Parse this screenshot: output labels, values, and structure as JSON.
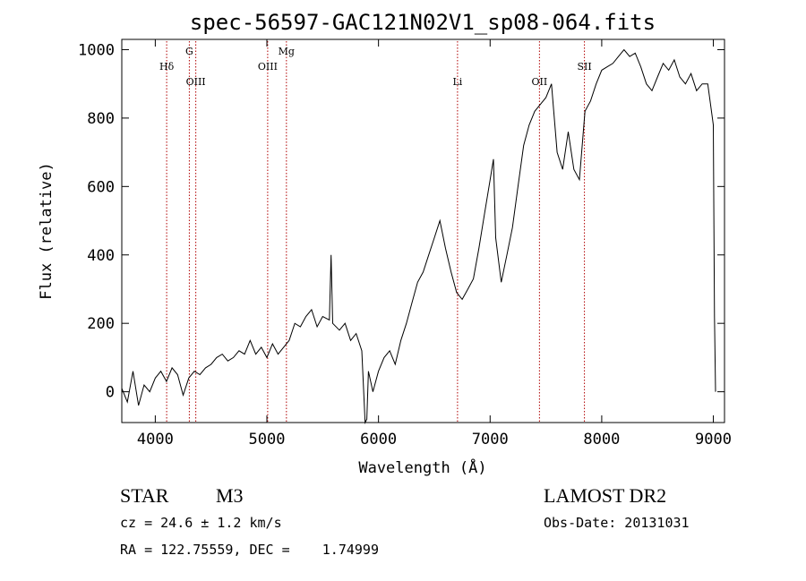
{
  "chart_data": {
    "type": "line",
    "title": "spec-56597-GAC121N02V1_sp08-064.fits",
    "xlabel": "Wavelength (Å)",
    "ylabel": "Flux (relative)",
    "xlim": [
      3700,
      9100
    ],
    "ylim": [
      -90,
      1030
    ],
    "xticks": [
      4000,
      5000,
      6000,
      7000,
      8000,
      9000
    ],
    "yticks": [
      0,
      200,
      400,
      600,
      800,
      1000
    ],
    "grid": false,
    "series": [
      {
        "x": [
          3700,
          3750,
          3800,
          3850,
          3900,
          3950,
          4000,
          4050,
          4100,
          4150,
          4200,
          4250,
          4300,
          4350,
          4400,
          4450,
          4500,
          4550,
          4600,
          4650,
          4700,
          4750,
          4800,
          4850,
          4900,
          4950,
          5000,
          5050,
          5100,
          5150,
          5200,
          5250,
          5300,
          5350,
          5400,
          5450,
          5500,
          5560,
          5575,
          5590,
          5650,
          5700,
          5750,
          5800,
          5850,
          5880,
          5895,
          5910,
          5950,
          6000,
          6050,
          6100,
          6150,
          6200,
          6250,
          6300,
          6350,
          6400,
          6450,
          6500,
          6550,
          6600,
          6650,
          6700,
          6750,
          6800,
          6850,
          6900,
          6950,
          7000,
          7030,
          7050,
          7100,
          7150,
          7200,
          7250,
          7300,
          7350,
          7400,
          7450,
          7500,
          7550,
          7600,
          7650,
          7700,
          7750,
          7800,
          7850,
          7900,
          7950,
          8000,
          8050,
          8100,
          8150,
          8200,
          8250,
          8300,
          8350,
          8400,
          8450,
          8500,
          8550,
          8600,
          8650,
          8700,
          8750,
          8800,
          8850,
          8900,
          8950,
          9000,
          9010,
          9020
        ],
        "y": [
          10,
          -30,
          60,
          -40,
          20,
          0,
          40,
          60,
          30,
          70,
          50,
          -10,
          40,
          60,
          50,
          70,
          80,
          100,
          110,
          90,
          100,
          120,
          110,
          150,
          110,
          130,
          100,
          140,
          110,
          130,
          150,
          200,
          190,
          220,
          240,
          190,
          220,
          210,
          400,
          200,
          180,
          200,
          150,
          170,
          120,
          -90,
          -80,
          60,
          0,
          60,
          100,
          120,
          80,
          150,
          200,
          260,
          320,
          350,
          400,
          450,
          500,
          420,
          350,
          290,
          270,
          300,
          330,
          420,
          520,
          620,
          680,
          450,
          320,
          400,
          480,
          600,
          720,
          780,
          820,
          840,
          860,
          900,
          700,
          650,
          760,
          650,
          620,
          820,
          850,
          900,
          940,
          950,
          960,
          980,
          1000,
          980,
          990,
          950,
          900,
          880,
          920,
          960,
          940,
          970,
          920,
          900,
          930,
          880,
          900,
          900,
          780,
          220,
          0
        ]
      }
    ],
    "line_markers": [
      {
        "label": "Hδ",
        "x": 4102,
        "row": 1
      },
      {
        "label": "G",
        "x": 4305,
        "row": 0
      },
      {
        "label": "OIII",
        "x": 4363,
        "row": 2
      },
      {
        "label": "OIII",
        "x": 5007,
        "row": 1
      },
      {
        "label": "Mg",
        "x": 5175,
        "row": 0
      },
      {
        "label": "Li",
        "x": 6708,
        "row": 2
      },
      {
        "label": "OII",
        "x": 7442,
        "row": 2
      },
      {
        "label": "SII",
        "x": 7845,
        "row": 1
      }
    ],
    "colors": {
      "spectrum": "#000000",
      "marker": "#b00000"
    }
  },
  "info": {
    "object_class": "STAR",
    "subclass": "M3",
    "survey": "LAMOST DR2",
    "redshift": "cz = 24.6 ± 1.2 km/s",
    "obs_date": "Obs-Date: 20131031",
    "coords": "RA = 122.75559, DEC =    1.74999"
  }
}
